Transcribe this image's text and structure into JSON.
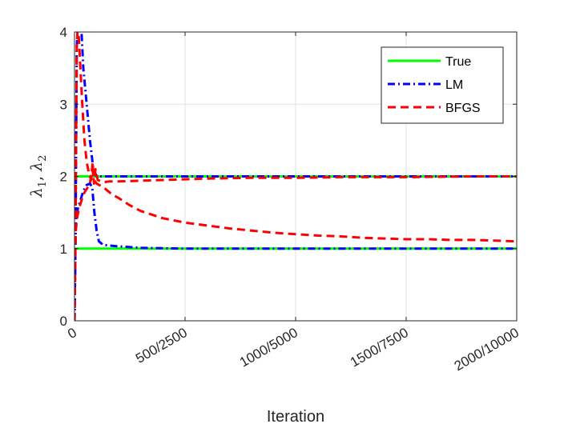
{
  "chart_data": {
    "type": "line",
    "xlabel": "Iteration",
    "ylabel": "λ1, λ2",
    "ylabel_parts": {
      "lambda": "λ",
      "sub1": "1",
      "comma": ", ",
      "sub2": "2"
    },
    "xlim": [
      0,
      2000
    ],
    "ylim": [
      0,
      4
    ],
    "xticks": [
      0,
      500,
      1000,
      1500,
      2000
    ],
    "xtick_labels": [
      "0",
      "500/2500",
      "1000/5000",
      "1500/7500",
      "2000/10000"
    ],
    "yticks": [
      0,
      1,
      2,
      3,
      4
    ],
    "ytick_labels": [
      "0",
      "1",
      "2",
      "3",
      "4"
    ],
    "grid": true,
    "legend_position": "top-right",
    "series": [
      {
        "name": "True",
        "color": "#00ff00",
        "dash": "solid",
        "lines": [
          {
            "x": [
              0,
              2000
            ],
            "y": [
              2,
              2
            ]
          },
          {
            "x": [
              0,
              2000
            ],
            "y": [
              1,
              1
            ]
          }
        ]
      },
      {
        "name": "LM",
        "color": "#0000ff",
        "dash": "dashdot",
        "lines": [
          {
            "x": [
              0,
              5,
              10,
              20,
              30,
              40,
              55,
              70,
              85,
              100,
              140,
              200,
              400,
              2000
            ],
            "y": [
              0,
              1.2,
              3.8,
              4.3,
              4.1,
              3.5,
              3.0,
              2.5,
              2.1,
              2.0,
              2.0,
              2.0,
              2.0,
              2.0
            ]
          },
          {
            "x": [
              0,
              5,
              10,
              20,
              30,
              40,
              55,
              70,
              80,
              90,
              100,
              110,
              130,
              200,
              300,
              500,
              2000
            ],
            "y": [
              0,
              1.3,
              1.5,
              1.6,
              1.7,
              1.8,
              1.88,
              1.9,
              1.85,
              1.5,
              1.25,
              1.1,
              1.05,
              1.03,
              1.01,
              1.0,
              1.0
            ]
          }
        ]
      },
      {
        "name": "BFGS",
        "color": "#ff0000",
        "dash": "dashed",
        "lines": [
          {
            "x": [
              0,
              5,
              10,
              15,
              20,
              25,
              35,
              45,
              55,
              65,
              75,
              82,
              88,
              95,
              105,
              130,
              160,
              200,
              300,
              400,
              600,
              800,
              1000,
              1200,
              1500,
              1800,
              2000
            ],
            "y": [
              0,
              1.4,
              3.8,
              4.1,
              3.9,
              3.6,
              3.0,
              2.5,
              2.2,
              2.05,
              1.95,
              2.2,
              1.9,
              2.1,
              1.95,
              1.92,
              1.93,
              1.93,
              1.94,
              1.95,
              1.97,
              1.98,
              1.98,
              1.99,
              1.99,
              2.0,
              2.0
            ]
          },
          {
            "x": [
              0,
              5,
              10,
              20,
              30,
              40,
              50,
              60,
              70,
              80,
              90,
              100,
              130,
              170,
              200,
              250,
              300,
              400,
              500,
              600,
              700,
              800,
              900,
              1000,
              1100,
              1200,
              1300,
              1400,
              1500,
              1600,
              1700,
              1800,
              1900,
              2000
            ],
            "y": [
              0,
              1.2,
              1.4,
              1.55,
              1.65,
              1.75,
              1.8,
              1.85,
              1.9,
              2.1,
              1.95,
              1.9,
              1.85,
              1.75,
              1.7,
              1.6,
              1.52,
              1.42,
              1.36,
              1.32,
              1.28,
              1.25,
              1.22,
              1.2,
              1.18,
              1.17,
              1.15,
              1.14,
              1.13,
              1.13,
              1.12,
              1.12,
              1.11,
              1.1
            ]
          }
        ]
      }
    ]
  }
}
